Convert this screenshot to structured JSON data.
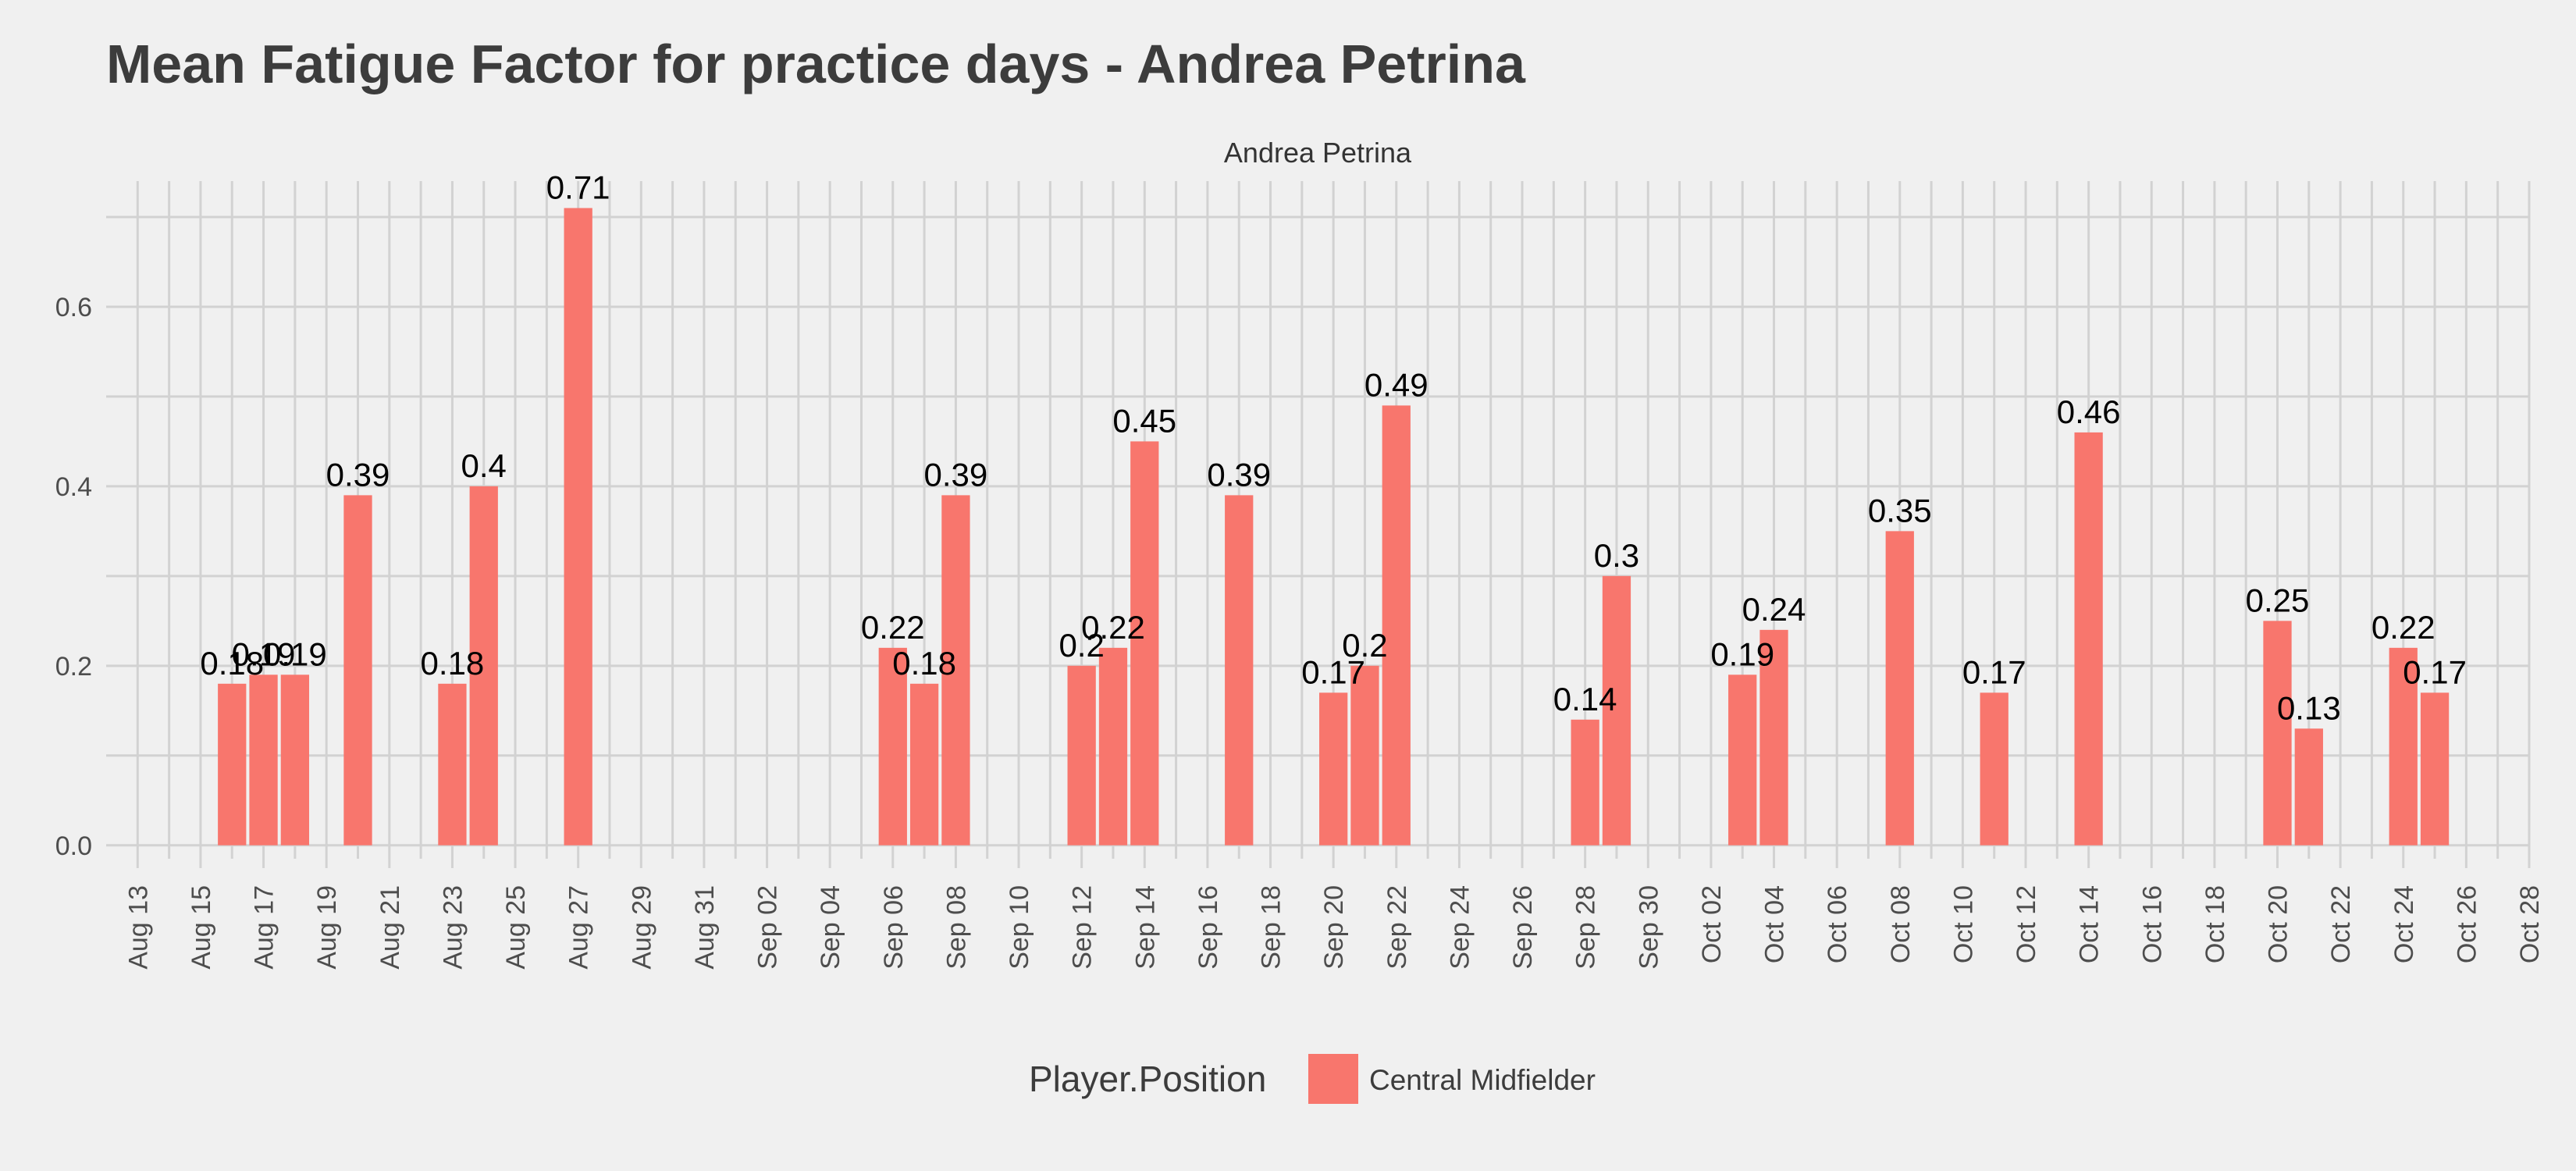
{
  "chart_data": {
    "type": "bar",
    "title": "Mean Fatigue Factor for practice days -  Andrea Petrina",
    "facet_label": "Andrea Petrina",
    "xlabel": "",
    "ylabel": "",
    "ylim": [
      -0.015,
      0.74
    ],
    "yticks": [
      0.0,
      0.2,
      0.4,
      0.6
    ],
    "ytick_labels": [
      "0.0",
      "0.2",
      "0.4",
      "0.6"
    ],
    "xlim": [
      "2016-08-12",
      "2016-10-28"
    ],
    "xticks": [
      "2016-08-13",
      "2016-08-15",
      "2016-08-17",
      "2016-08-19",
      "2016-08-21",
      "2016-08-23",
      "2016-08-25",
      "2016-08-27",
      "2016-08-29",
      "2016-08-31",
      "2016-09-02",
      "2016-09-04",
      "2016-09-06",
      "2016-09-08",
      "2016-09-10",
      "2016-09-12",
      "2016-09-14",
      "2016-09-16",
      "2016-09-18",
      "2016-09-20",
      "2016-09-22",
      "2016-09-24",
      "2016-09-26",
      "2016-09-28",
      "2016-09-30",
      "2016-10-02",
      "2016-10-04",
      "2016-10-06",
      "2016-10-08",
      "2016-10-10",
      "2016-10-12",
      "2016-10-14",
      "2016-10-16",
      "2016-10-18",
      "2016-10-20",
      "2016-10-22",
      "2016-10-24",
      "2016-10-26",
      "2016-10-28"
    ],
    "xtick_labels": [
      "Aug 13",
      "Aug 15",
      "Aug 17",
      "Aug 19",
      "Aug 21",
      "Aug 23",
      "Aug 25",
      "Aug 27",
      "Aug 29",
      "Aug 31",
      "Sep 02",
      "Sep 04",
      "Sep 06",
      "Sep 08",
      "Sep 10",
      "Sep 12",
      "Sep 14",
      "Sep 16",
      "Sep 18",
      "Sep 20",
      "Sep 22",
      "Sep 24",
      "Sep 26",
      "Sep 28",
      "Sep 30",
      "Oct 02",
      "Oct 04",
      "Oct 06",
      "Oct 08",
      "Oct 10",
      "Oct 12",
      "Oct 14",
      "Oct 16",
      "Oct 18",
      "Oct 20",
      "Oct 22",
      "Oct 24",
      "Oct 26",
      "Oct 28"
    ],
    "grid": true,
    "bar_color": "#f8766d",
    "legend": {
      "title": "Player.Position",
      "position": "bottom",
      "entries": [
        {
          "label": "Central Midfielder",
          "color": "#f8766d"
        }
      ]
    },
    "series": [
      {
        "name": "Central Midfielder",
        "points": [
          {
            "x": "2016-08-16",
            "y": 0.18,
            "label": "0.18"
          },
          {
            "x": "2016-08-17",
            "y": 0.19,
            "label": "0.19"
          },
          {
            "x": "2016-08-18",
            "y": 0.19,
            "label": "0.19"
          },
          {
            "x": "2016-08-20",
            "y": 0.39,
            "label": "0.39"
          },
          {
            "x": "2016-08-23",
            "y": 0.18,
            "label": "0.18"
          },
          {
            "x": "2016-08-24",
            "y": 0.4,
            "label": "0.4"
          },
          {
            "x": "2016-08-27",
            "y": 0.71,
            "label": "0.71"
          },
          {
            "x": "2016-09-06",
            "y": 0.22,
            "label": "0.22"
          },
          {
            "x": "2016-09-07",
            "y": 0.18,
            "label": "0.18"
          },
          {
            "x": "2016-09-08",
            "y": 0.39,
            "label": "0.39"
          },
          {
            "x": "2016-09-12",
            "y": 0.2,
            "label": "0.2"
          },
          {
            "x": "2016-09-13",
            "y": 0.22,
            "label": "0.22"
          },
          {
            "x": "2016-09-14",
            "y": 0.45,
            "label": "0.45"
          },
          {
            "x": "2016-09-17",
            "y": 0.39,
            "label": "0.39"
          },
          {
            "x": "2016-09-20",
            "y": 0.17,
            "label": "0.17"
          },
          {
            "x": "2016-09-21",
            "y": 0.2,
            "label": "0.2"
          },
          {
            "x": "2016-09-22",
            "y": 0.49,
            "label": "0.49"
          },
          {
            "x": "2016-09-28",
            "y": 0.14,
            "label": "0.14"
          },
          {
            "x": "2016-09-29",
            "y": 0.3,
            "label": "0.3"
          },
          {
            "x": "2016-10-03",
            "y": 0.19,
            "label": "0.19"
          },
          {
            "x": "2016-10-04",
            "y": 0.24,
            "label": "0.24"
          },
          {
            "x": "2016-10-08",
            "y": 0.35,
            "label": "0.35"
          },
          {
            "x": "2016-10-11",
            "y": 0.17,
            "label": "0.17"
          },
          {
            "x": "2016-10-14",
            "y": 0.46,
            "label": "0.46"
          },
          {
            "x": "2016-10-20",
            "y": 0.25,
            "label": "0.25"
          },
          {
            "x": "2016-10-21",
            "y": 0.13,
            "label": "0.13"
          },
          {
            "x": "2016-10-24",
            "y": 0.22,
            "label": "0.22"
          },
          {
            "x": "2016-10-25",
            "y": 0.17,
            "label": "0.17"
          }
        ]
      }
    ]
  }
}
